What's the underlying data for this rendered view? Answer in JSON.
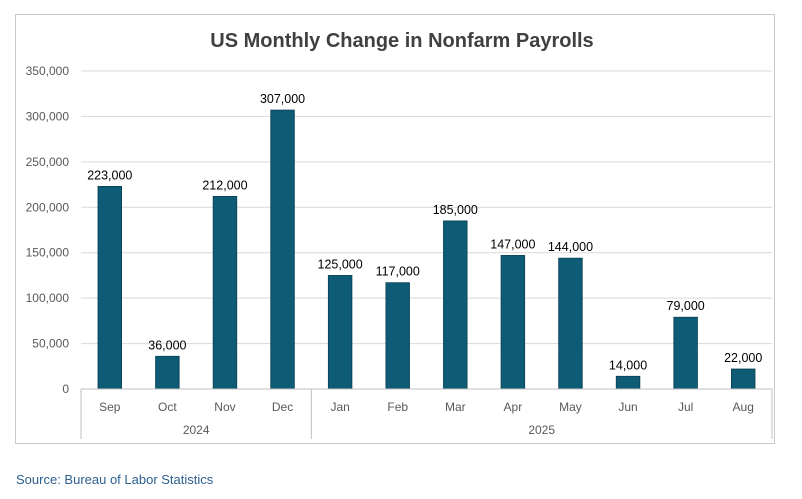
{
  "colors": {
    "bar": "#0e5b76",
    "grid": "#d9d9d9",
    "axis_text": "#595959",
    "title": "#404040"
  },
  "source": "Source: Bureau of Labor Statistics",
  "chart_data": {
    "type": "bar",
    "title": "US Monthly Change in Nonfarm Payrolls",
    "categories": [
      "Sep",
      "Oct",
      "Nov",
      "Dec",
      "Jan",
      "Feb",
      "Mar",
      "Apr",
      "May",
      "Jun",
      "Jul",
      "Aug"
    ],
    "values": [
      223000,
      36000,
      212000,
      307000,
      125000,
      117000,
      185000,
      147000,
      144000,
      14000,
      79000,
      22000
    ],
    "data_labels": [
      "223,000",
      "36,000",
      "212,000",
      "307,000",
      "125,000",
      "117,000",
      "185,000",
      "147,000",
      "144,000",
      "14,000",
      "79,000",
      "22,000"
    ],
    "groups": [
      {
        "label": "2024",
        "start": 0,
        "end": 3
      },
      {
        "label": "2025",
        "start": 4,
        "end": 11
      }
    ],
    "yticks": [
      0,
      50000,
      100000,
      150000,
      200000,
      250000,
      300000,
      350000
    ],
    "ytick_labels": [
      "0",
      "50,000",
      "100,000",
      "150,000",
      "200,000",
      "250,000",
      "300,000",
      "350,000"
    ],
    "ylim": [
      0,
      350000
    ],
    "grid": true,
    "legend": "none"
  }
}
